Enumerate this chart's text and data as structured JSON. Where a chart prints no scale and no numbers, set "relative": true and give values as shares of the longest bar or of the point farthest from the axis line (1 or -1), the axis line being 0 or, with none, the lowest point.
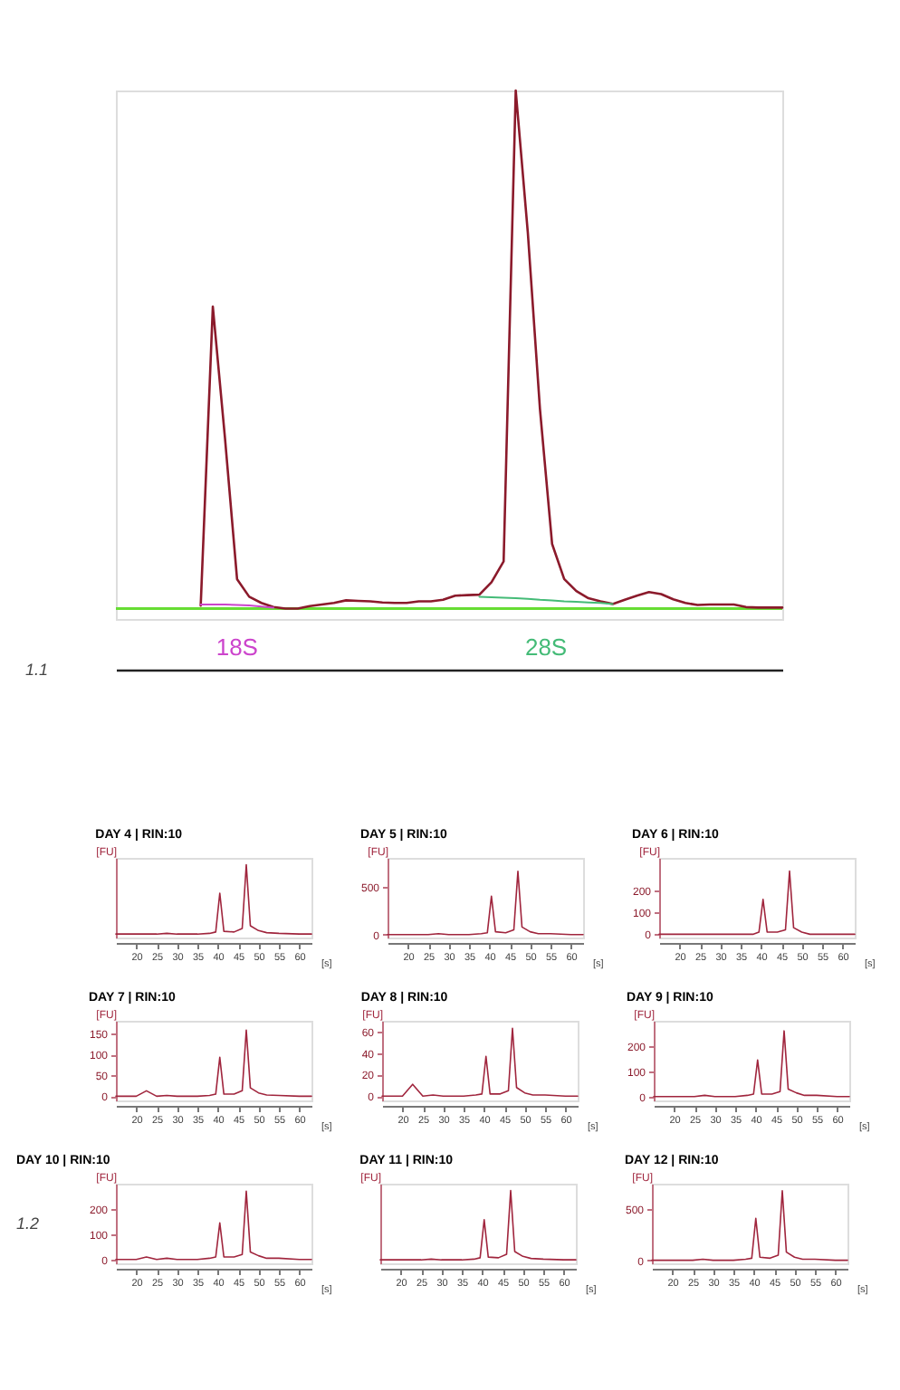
{
  "chart_data": [
    {
      "type": "line",
      "relative": true,
      "tick_labels": false,
      "grid": false,
      "marker": "none",
      "line_style": "solid",
      "categories": [
        null,
        null,
        null,
        null,
        null,
        null,
        null,
        null,
        null,
        null,
        null,
        null,
        null,
        null,
        null,
        null,
        null,
        null,
        null,
        null,
        null,
        null,
        null,
        null,
        null,
        null,
        null,
        null,
        null,
        null,
        null,
        null,
        null,
        null,
        null,
        null,
        null,
        null,
        null,
        null,
        null,
        null,
        null,
        null,
        null,
        null,
        null,
        null,
        null,
        null,
        null,
        null,
        null,
        null,
        null,
        null
      ],
      "series": [
        {
          "color": "#8b1a2b",
          "values": [
            null,
            null,
            null,
            null,
            null,
            null,
            null,
            0.006,
            0.583,
            0.33,
            0.057,
            0.023,
            0.011,
            0.003,
            0,
            0,
            0.005,
            0.008,
            0.011,
            0.016,
            0.015,
            0.014,
            0.012,
            0.011,
            0.011,
            0.014,
            0.014,
            0.017,
            0.025,
            0.026,
            0.027,
            0.051,
            0.091,
            1.0,
            0.725,
            0.385,
            0.125,
            0.057,
            0.034,
            0.02,
            0.014,
            0.009,
            0.017,
            0.025,
            0.032,
            0.028,
            0.018,
            0.011,
            0.007,
            0.008,
            0.008,
            0.008,
            0.003,
            0.002,
            0.002,
            0.002
          ]
        },
        {
          "name": "18S",
          "color": "#cc44cc",
          "values": [
            null,
            null,
            null,
            null,
            null,
            null,
            null,
            0.008,
            0.008,
            0.008,
            0.007,
            0.006,
            0.004,
            0.002,
            null,
            null,
            null,
            null,
            null,
            null,
            null,
            null,
            null,
            null,
            null,
            null,
            null,
            null,
            null,
            null,
            null,
            null,
            null,
            null,
            null,
            null,
            null,
            null,
            null,
            null,
            null,
            null,
            null,
            null,
            null,
            null,
            null,
            null,
            null,
            null,
            null,
            null,
            null,
            null,
            null,
            null
          ]
        },
        {
          "name": "28S",
          "color": "#44bb77",
          "values": [
            null,
            null,
            null,
            null,
            null,
            null,
            null,
            null,
            null,
            null,
            null,
            null,
            null,
            null,
            null,
            null,
            null,
            null,
            null,
            null,
            null,
            null,
            null,
            null,
            null,
            null,
            null,
            null,
            null,
            null,
            0.023,
            0.022,
            0.021,
            0.02,
            0.019,
            0.017,
            0.016,
            0.014,
            0.013,
            0.012,
            0.011,
            0.009,
            null,
            null,
            null,
            null,
            null,
            null,
            null,
            null,
            null,
            null,
            null,
            null,
            null,
            null
          ]
        }
      ],
      "ref_lines": [
        {
          "axis": "y",
          "value": 0,
          "color": "#66dd33"
        }
      ],
      "annotations": [
        "1.1"
      ]
    },
    {
      "type": "line",
      "title": "DAY 4 | RIN:10",
      "ylabel": "[FU]",
      "relative": true,
      "grid": false,
      "x": [
        15,
        20,
        22.5,
        25,
        27.5,
        30,
        35,
        38,
        39.5,
        40.5,
        41.5,
        44,
        46,
        47,
        48,
        50,
        52,
        55,
        60,
        63
      ],
      "xlim": [
        15,
        63
      ],
      "xticks": [
        20,
        25,
        30,
        35,
        40,
        45,
        50,
        55,
        60
      ],
      "xlabel": "[s]",
      "series": [
        {
          "color": "#a0253d",
          "values": [
            0,
            0,
            0,
            0,
            0.01,
            0,
            0,
            0.01,
            0.03,
            0.59,
            0.04,
            0.03,
            0.08,
            1,
            0.12,
            0.05,
            0.02,
            0.01,
            0,
            0
          ]
        }
      ]
    },
    {
      "type": "line",
      "title": "DAY 5 | RIN:10",
      "ylabel": "[FU]",
      "grid": false,
      "x": [
        15,
        20,
        22.5,
        25,
        27.5,
        30,
        35,
        38,
        39.5,
        40.5,
        41.5,
        44,
        46,
        47,
        48,
        50,
        52,
        55,
        60,
        63
      ],
      "xlim": [
        15,
        63
      ],
      "xticks": [
        20,
        25,
        30,
        35,
        40,
        45,
        50,
        55,
        60
      ],
      "xlabel": "[s]",
      "ylim": [
        -30,
        800
      ],
      "yticks": [
        0,
        500
      ],
      "series": [
        {
          "color": "#a0253d",
          "values": [
            0,
            0,
            0,
            0,
            10,
            0,
            0,
            10,
            20,
            400,
            30,
            20,
            50,
            660,
            80,
            30,
            10,
            10,
            0,
            0
          ]
        }
      ]
    },
    {
      "type": "line",
      "title": "DAY 6 | RIN:10",
      "ylabel": "[FU]",
      "grid": false,
      "x": [
        15,
        20,
        22.5,
        25,
        27.5,
        30,
        35,
        38,
        39.5,
        40.5,
        41.5,
        44,
        46,
        47,
        48,
        50,
        52,
        55,
        60,
        63
      ],
      "xlim": [
        15,
        63
      ],
      "xticks": [
        20,
        25,
        30,
        35,
        40,
        45,
        50,
        55,
        60
      ],
      "xlabel": "[s]",
      "ylim": [
        -15,
        350
      ],
      "yticks": [
        0,
        100,
        200
      ],
      "series": [
        {
          "color": "#a0253d",
          "values": [
            0,
            0,
            0,
            0,
            0,
            0,
            0,
            0,
            10,
            160,
            10,
            10,
            20,
            290,
            30,
            10,
            0,
            0,
            0,
            0
          ]
        }
      ]
    },
    {
      "type": "line",
      "title": "DAY 7 | RIN:10",
      "ylabel": "[FU]",
      "grid": false,
      "x": [
        15,
        20,
        22.5,
        25,
        27.5,
        30,
        35,
        38,
        39.5,
        40.5,
        41.5,
        44,
        46,
        47,
        48,
        50,
        52,
        55,
        60,
        63
      ],
      "xlim": [
        15,
        63
      ],
      "xticks": [
        20,
        25,
        30,
        35,
        40,
        45,
        50,
        55,
        60
      ],
      "xlabel": "[s]",
      "ylim": [
        -10,
        180
      ],
      "yticks": [
        0,
        50,
        100,
        150
      ],
      "series": [
        {
          "color": "#a0253d",
          "values": [
            0,
            0,
            13,
            0,
            2,
            0,
            0,
            2,
            5,
            93,
            5,
            5,
            13,
            158,
            20,
            8,
            3,
            2,
            0,
            0
          ]
        }
      ]
    },
    {
      "type": "line",
      "title": "DAY 8 | RIN:10",
      "ylabel": "[FU]",
      "grid": false,
      "x": [
        15,
        20,
        22.5,
        25,
        27.5,
        30,
        35,
        38,
        39.5,
        40.5,
        41.5,
        44,
        46,
        47,
        48,
        50,
        52,
        55,
        60,
        63
      ],
      "xlim": [
        15,
        63
      ],
      "xticks": [
        20,
        25,
        30,
        35,
        40,
        45,
        50,
        55,
        60
      ],
      "xlabel": "[s]",
      "ylim": [
        -4,
        70
      ],
      "yticks": [
        0,
        20,
        40,
        60
      ],
      "series": [
        {
          "color": "#a0253d",
          "values": [
            0,
            0,
            11,
            0,
            1,
            0,
            0,
            1,
            2,
            37,
            2,
            2,
            5,
            63,
            8,
            3,
            1,
            1,
            0,
            0
          ]
        }
      ]
    },
    {
      "type": "line",
      "title": "DAY 9 | RIN:10",
      "ylabel": "[FU]",
      "grid": false,
      "x": [
        15,
        20,
        22.5,
        25,
        27.5,
        30,
        35,
        38,
        39.5,
        40.5,
        41.5,
        44,
        46,
        47,
        48,
        50,
        52,
        55,
        60,
        63
      ],
      "xlim": [
        15,
        63
      ],
      "xticks": [
        20,
        25,
        30,
        35,
        40,
        45,
        50,
        55,
        60
      ],
      "xlabel": "[s]",
      "ylim": [
        -15,
        300
      ],
      "yticks": [
        0,
        100,
        200
      ],
      "series": [
        {
          "color": "#a0253d",
          "values": [
            0,
            0,
            0,
            0,
            5,
            0,
            0,
            5,
            10,
            145,
            10,
            10,
            20,
            260,
            30,
            15,
            5,
            5,
            0,
            0
          ]
        }
      ]
    },
    {
      "type": "line",
      "title": "DAY 10 | RIN:10",
      "ylabel": "[FU]",
      "grid": false,
      "x": [
        15,
        20,
        22.5,
        25,
        27.5,
        30,
        35,
        38,
        39.5,
        40.5,
        41.5,
        44,
        46,
        47,
        48,
        50,
        52,
        55,
        60,
        63
      ],
      "xlim": [
        15,
        63
      ],
      "xticks": [
        20,
        25,
        30,
        35,
        40,
        45,
        50,
        55,
        60
      ],
      "xlabel": "[s]",
      "ylim": [
        -15,
        300
      ],
      "yticks": [
        0,
        100,
        200
      ],
      "series": [
        {
          "color": "#a0253d",
          "values": [
            0,
            0,
            10,
            0,
            5,
            0,
            0,
            5,
            10,
            145,
            10,
            10,
            20,
            270,
            30,
            15,
            5,
            5,
            0,
            0
          ]
        }
      ],
      "annotations": [
        "1.2"
      ]
    },
    {
      "type": "line",
      "title": "DAY 11 | RIN:10",
      "ylabel": "[FU]",
      "relative": true,
      "grid": false,
      "x": [
        15,
        20,
        22.5,
        25,
        27.5,
        30,
        35,
        38,
        39.5,
        40.5,
        41.5,
        44,
        46,
        47,
        48,
        50,
        52,
        55,
        60,
        63
      ],
      "xlim": [
        15,
        63
      ],
      "xticks": [
        20,
        25,
        30,
        35,
        40,
        45,
        50,
        55,
        60
      ],
      "xlabel": "[s]",
      "series": [
        {
          "color": "#a0253d",
          "values": [
            0,
            0,
            0,
            0,
            0.01,
            0,
            0,
            0.01,
            0.03,
            0.58,
            0.04,
            0.03,
            0.08,
            1,
            0.12,
            0.05,
            0.02,
            0.01,
            0,
            0
          ]
        }
      ]
    },
    {
      "type": "line",
      "title": "DAY 12 | RIN:10",
      "ylabel": "[FU]",
      "grid": false,
      "x": [
        15,
        20,
        22.5,
        25,
        27.5,
        30,
        35,
        38,
        39.5,
        40.5,
        41.5,
        44,
        46,
        47,
        48,
        50,
        52,
        55,
        60,
        63
      ],
      "xlim": [
        15,
        63
      ],
      "xticks": [
        20,
        25,
        30,
        35,
        40,
        45,
        50,
        55,
        60
      ],
      "xlabel": "[s]",
      "ylim": [
        -30,
        750
      ],
      "yticks": [
        0,
        500
      ],
      "series": [
        {
          "color": "#a0253d",
          "values": [
            0,
            0,
            0,
            0,
            10,
            0,
            0,
            10,
            20,
            410,
            30,
            20,
            50,
            680,
            80,
            30,
            10,
            10,
            0,
            0
          ]
        }
      ]
    }
  ]
}
